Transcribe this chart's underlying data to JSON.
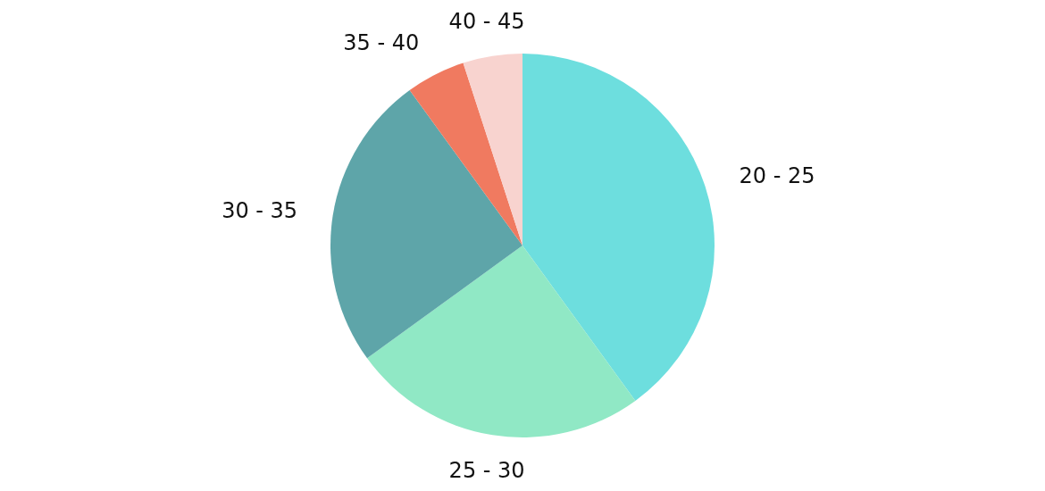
{
  "chart_data": {
    "type": "pie",
    "categories": [
      "20 - 25",
      "25 - 30",
      "30 - 35",
      "35 - 40",
      "40 - 45"
    ],
    "values": [
      40,
      25,
      25,
      5,
      5
    ],
    "colors": [
      "#6ddede",
      "#90e8c5",
      "#5ea5a9",
      "#f07a60",
      "#f8d3cf"
    ]
  }
}
